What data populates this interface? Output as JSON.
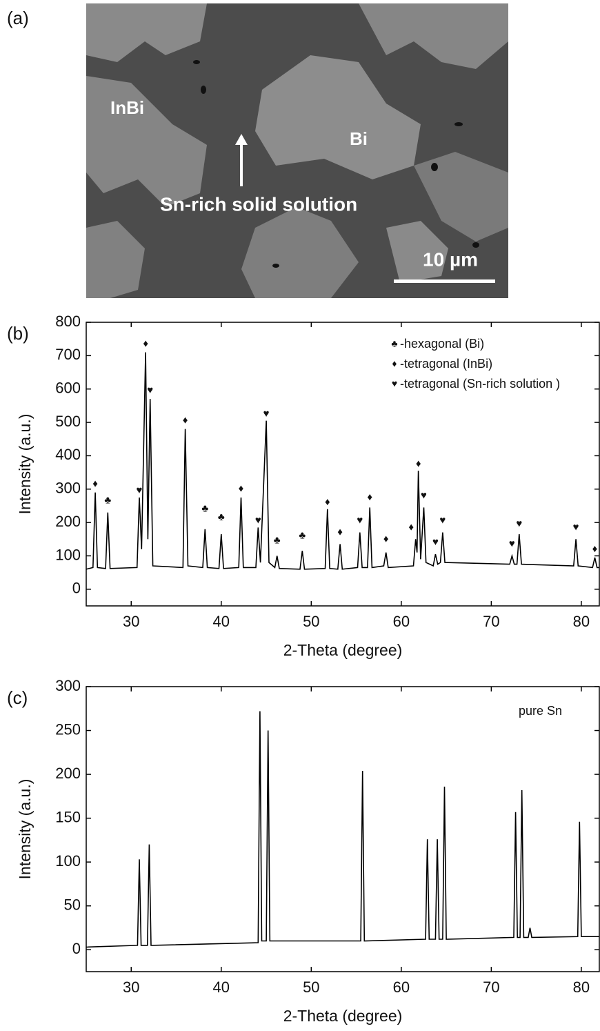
{
  "panel_a": {
    "label": "(a)",
    "phase_labels": [
      "InBi",
      "Bi",
      "Sn-rich solid solution"
    ],
    "scale_bar": "10 µm"
  },
  "chart_data": [
    {
      "type": "line",
      "panel_label": "(b)",
      "x_label": "2-Theta (degree)",
      "y_label": "Intensity (a.u.)",
      "color": "#000000",
      "xlim": [
        25,
        82
      ],
      "xticks": [
        30,
        40,
        50,
        60,
        70,
        80
      ],
      "ylim": [
        -50,
        800
      ],
      "yticks": [
        0,
        100,
        200,
        300,
        400,
        500,
        600,
        700,
        800
      ],
      "x": [
        25,
        25.75,
        26.0,
        26.25,
        27.15,
        27.4,
        27.65,
        30.65,
        30.9,
        31.15,
        31.6,
        31.85,
        32.1,
        32.4,
        35.75,
        36.0,
        36.3,
        37.95,
        38.2,
        38.45,
        39.75,
        40.0,
        40.25,
        41.95,
        42.2,
        42.45,
        43.85,
        44.1,
        44.35,
        45.0,
        45.3,
        45.95,
        46.2,
        46.45,
        48.75,
        49.0,
        49.25,
        51.55,
        51.8,
        52.05,
        52.95,
        53.2,
        53.45,
        55.15,
        55.4,
        55.65,
        56.25,
        56.5,
        56.75,
        58.05,
        58.3,
        58.55,
        61.35,
        61.6,
        61.75,
        61.9,
        62.15,
        62.5,
        62.75,
        63.55,
        63.8,
        64.05,
        64.35,
        64.6,
        64.85,
        72.05,
        72.3,
        72.55,
        72.85,
        73.1,
        73.35,
        79.15,
        79.4,
        79.65,
        81.25,
        81.5,
        81.75,
        82
      ],
      "values": [
        60,
        65,
        290,
        65,
        62,
        230,
        62,
        65,
        275,
        120,
        710,
        150,
        570,
        70,
        65,
        480,
        70,
        65,
        180,
        65,
        62,
        165,
        62,
        65,
        275,
        65,
        65,
        185,
        80,
        505,
        80,
        65,
        100,
        62,
        60,
        115,
        60,
        62,
        240,
        62,
        60,
        135,
        60,
        65,
        170,
        65,
        65,
        245,
        65,
        70,
        110,
        65,
        70,
        150,
        110,
        355,
        90,
        245,
        80,
        70,
        105,
        75,
        80,
        170,
        80,
        75,
        100,
        75,
        75,
        165,
        75,
        70,
        150,
        70,
        65,
        95,
        65,
        65
      ],
      "markers": [
        {
          "symbol": "♣",
          "name": "-hexagonal (Bi)",
          "x": [
            27.4,
            38.2,
            40.0,
            46.2,
            49.0
          ],
          "values": [
            265,
            240,
            215,
            145,
            160
          ]
        },
        {
          "symbol": "♦",
          "name": "-tetragonal (InBi)",
          "x": [
            26.0,
            31.6,
            36.0,
            42.2,
            51.8,
            53.2,
            56.5,
            58.3,
            61.1,
            61.9,
            81.5
          ],
          "values": [
            315,
            735,
            505,
            300,
            260,
            170,
            275,
            150,
            185,
            375,
            120
          ]
        },
        {
          "symbol": "♥",
          "name": "-tetragonal (Sn-rich solution )",
          "x": [
            30.9,
            32.1,
            44.1,
            45.0,
            55.4,
            62.5,
            63.8,
            64.6,
            72.3,
            73.1,
            79.4
          ],
          "values": [
            295,
            595,
            205,
            525,
            205,
            280,
            140,
            205,
            135,
            195,
            185
          ]
        }
      ]
    },
    {
      "type": "line",
      "panel_label": "(c)",
      "x_label": "2-Theta (degree)",
      "y_label": "Intensity (a.u.)",
      "annotation": "pure Sn",
      "color": "#000000",
      "xlim": [
        25,
        82
      ],
      "xticks": [
        30,
        40,
        50,
        60,
        70,
        80
      ],
      "ylim": [
        -25,
        300
      ],
      "yticks": [
        0,
        50,
        100,
        150,
        200,
        250,
        300
      ],
      "x": [
        25,
        30.7,
        30.9,
        31.1,
        31.8,
        32.0,
        32.2,
        44.1,
        44.3,
        44.5,
        45.0,
        45.2,
        45.4,
        55.5,
        55.7,
        55.9,
        62.7,
        62.9,
        63.1,
        63.8,
        64.0,
        64.2,
        64.6,
        64.8,
        65.0,
        72.5,
        72.7,
        72.9,
        73.2,
        73.4,
        73.6,
        74.1,
        74.3,
        74.5,
        79.6,
        79.8,
        80.0,
        82
      ],
      "values": [
        3,
        5,
        103,
        5,
        5,
        120,
        5,
        8,
        272,
        10,
        10,
        250,
        10,
        10,
        204,
        10,
        12,
        126,
        12,
        12,
        126,
        12,
        12,
        186,
        12,
        14,
        157,
        14,
        14,
        182,
        14,
        14,
        25,
        14,
        15,
        146,
        15,
        15
      ]
    }
  ]
}
